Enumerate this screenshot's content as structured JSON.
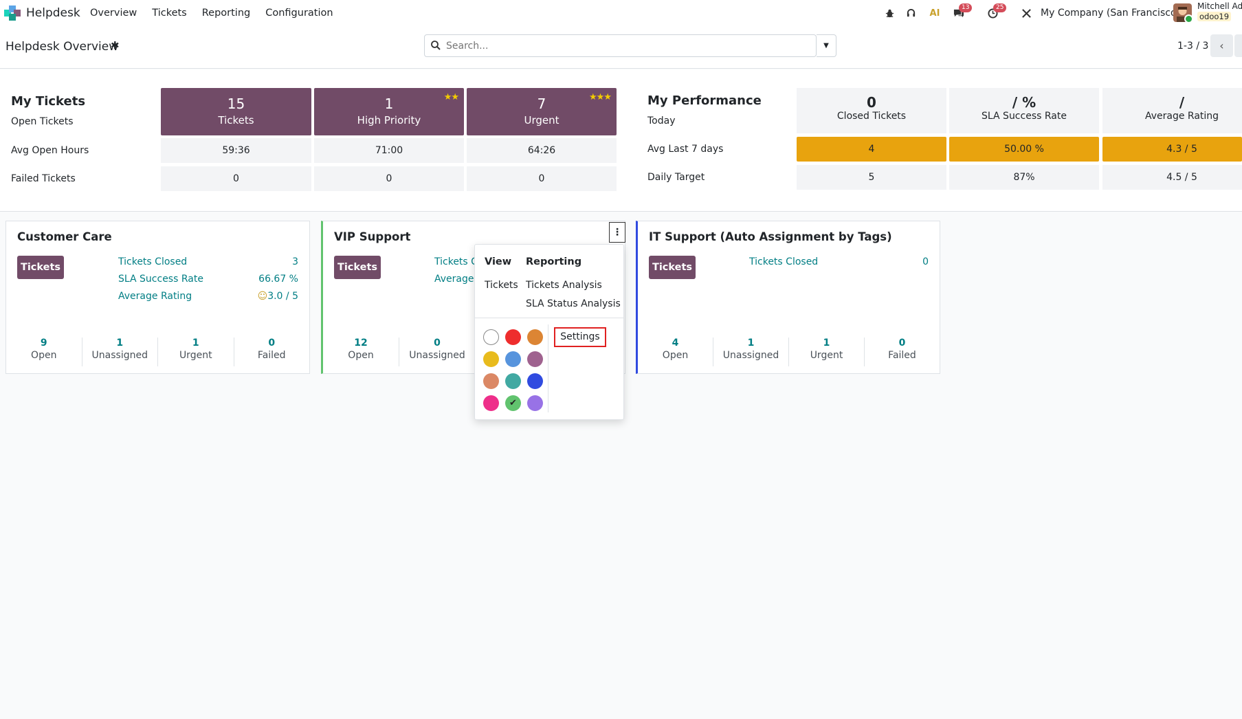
{
  "app": {
    "name": "Helpdesk"
  },
  "nav": {
    "overview": "Overview",
    "tickets": "Tickets",
    "reporting": "Reporting",
    "configuration": "Configuration"
  },
  "systray": {
    "chat_count": "13",
    "activity_count": "25",
    "company": "My Company (San Francisco)",
    "user_name": "Mitchell Adm",
    "user_db": "odoo19"
  },
  "control": {
    "title": "Helpdesk Overview",
    "search_placeholder": "Search...",
    "pager": "1-3 / 3"
  },
  "my_tickets": {
    "heading": "My Tickets",
    "row_open": "Open Tickets",
    "row_avg": "Avg Open Hours",
    "row_failed": "Failed Tickets",
    "tiles": [
      {
        "num": "15",
        "label": "Tickets",
        "stars": ""
      },
      {
        "num": "1",
        "label": "High Priority",
        "stars": "★★"
      },
      {
        "num": "7",
        "label": "Urgent",
        "stars": "★★★"
      }
    ],
    "avg_hours": [
      "59:36",
      "71:00",
      "64:26"
    ],
    "failed": [
      "0",
      "0",
      "0"
    ]
  },
  "my_performance": {
    "heading": "My Performance",
    "row_today": "Today",
    "row_avg7": "Avg Last 7 days",
    "row_target": "Daily Target",
    "heads": [
      {
        "num": "0",
        "label": "Closed Tickets"
      },
      {
        "num": "/ %",
        "label": "SLA Success Rate"
      },
      {
        "num": "/",
        "label": "Average Rating"
      }
    ],
    "avg7": [
      "4",
      "50.00 %",
      "4.3 / 5"
    ],
    "target": [
      "5",
      "87%",
      "4.5 / 5"
    ]
  },
  "teams": [
    {
      "title": "Customer Care",
      "button": "Tickets",
      "links": [
        {
          "label": "Tickets Closed",
          "value": "3"
        },
        {
          "label": "SLA Success Rate",
          "value": "66.67 %"
        },
        {
          "label": "Average Rating",
          "value": "3.0 / 5"
        }
      ],
      "stats": [
        {
          "n": "9",
          "t": "Open"
        },
        {
          "n": "1",
          "t": "Unassigned"
        },
        {
          "n": "1",
          "t": "Urgent"
        },
        {
          "n": "0",
          "t": "Failed"
        }
      ]
    },
    {
      "title": "VIP Support",
      "button": "Tickets",
      "links": [
        {
          "label": "Tickets Cl",
          "value": ""
        },
        {
          "label": "Average R",
          "value": ""
        }
      ],
      "stats": [
        {
          "n": "12",
          "t": "Open"
        },
        {
          "n": "0",
          "t": "Unassigned"
        }
      ]
    },
    {
      "title": "IT Support (Auto Assignment by Tags)",
      "button": "Tickets",
      "links": [
        {
          "label": "Tickets Closed",
          "value": "0"
        }
      ],
      "stats": [
        {
          "n": "4",
          "t": "Open"
        },
        {
          "n": "1",
          "t": "Unassigned"
        },
        {
          "n": "1",
          "t": "Urgent"
        },
        {
          "n": "0",
          "t": "Failed"
        }
      ]
    }
  ],
  "dropdown": {
    "view_heading": "View",
    "reporting_heading": "Reporting",
    "view_tickets": "Tickets",
    "tickets_analysis": "Tickets Analysis",
    "sla_status_analysis": "SLA Status Analysis",
    "settings": "Settings",
    "colors": [
      "#ffffff",
      "#ee2d2d",
      "#dc8534",
      "#e8bb1d",
      "#5794dd",
      "#9f628f",
      "#db8865",
      "#41a9a2",
      "#304be0",
      "#ee2f8a",
      "#61c36e",
      "#9872e6"
    ],
    "selected_color_index": 10
  },
  "colors": {
    "brand": "#714b67",
    "accent_teal": "#017e84",
    "warning": "#e8a30e",
    "vip_border": "#61c36e",
    "it_border": "#304be0"
  }
}
